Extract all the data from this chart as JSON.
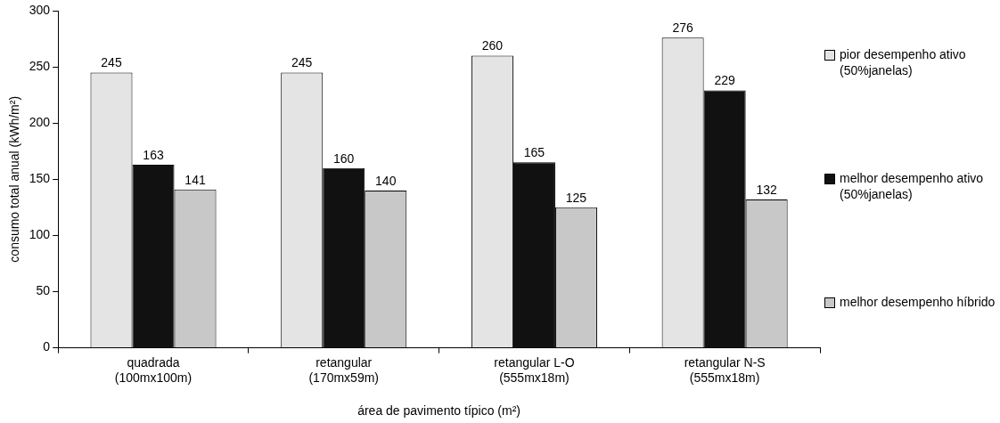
{
  "chart_data": {
    "type": "bar",
    "xlabel": "área de pavimento típico (m²)",
    "ylabel": "consumo total anual (kWh/m²)",
    "categories": [
      "quadrada\n(100mx100m)",
      "retangular\n(170mx59m)",
      "retangular L-O\n(555mx18m)",
      "retangular N-S\n(555mx18m)"
    ],
    "series": [
      {
        "name": "pior desempenho ativo\n(50%janelas)",
        "color": "#e4e4e4",
        "values": [
          245,
          245,
          260,
          276
        ]
      },
      {
        "name": "melhor desempenho ativo\n(50%janelas)",
        "color": "#111111",
        "values": [
          163,
          160,
          165,
          229
        ]
      },
      {
        "name": "melhor desempenho híbrido",
        "color": "#c8c8c8",
        "values": [
          141,
          140,
          125,
          132
        ]
      }
    ],
    "ylim": [
      0,
      300
    ],
    "yticks": [
      0,
      50,
      100,
      150,
      200,
      250,
      300
    ],
    "grid": false,
    "legend": "right",
    "data_labels": true
  }
}
